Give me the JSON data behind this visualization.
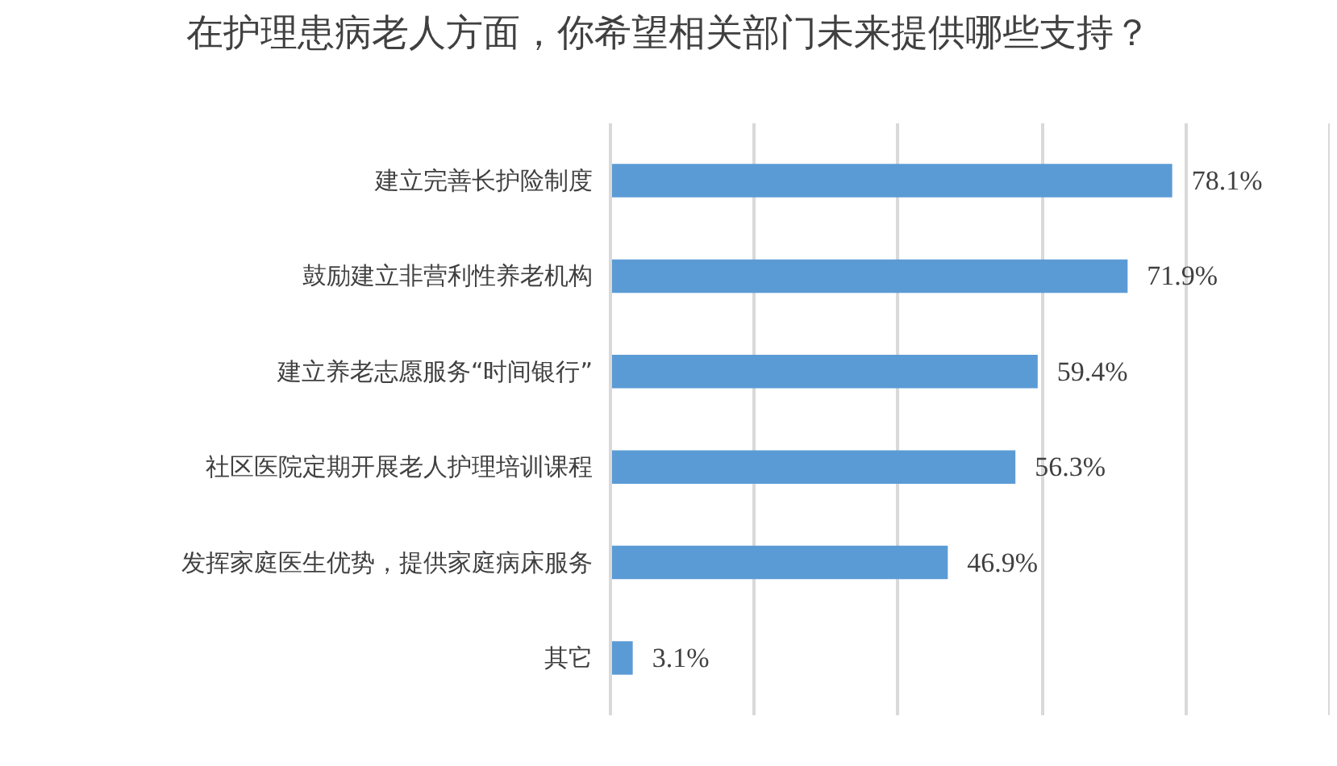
{
  "chart_data": {
    "type": "bar",
    "orientation": "horizontal",
    "title": "在护理患病老人方面，你希望相关部门未来提供哪些支持？",
    "categories": [
      "建立完善长护险制度",
      "鼓励建立非营利性养老机构",
      "建立养老志愿服务“时间银行”",
      "社区医院定期开展老人护理培训课程",
      "发挥家庭医生优势，提供家庭病床服务",
      "其它"
    ],
    "values": [
      78.1,
      71.9,
      59.4,
      56.3,
      46.9,
      3.1
    ],
    "value_labels": [
      "78.1%",
      "71.9%",
      "59.4%",
      "56.3%",
      "46.9%",
      "3.1%"
    ],
    "color": "#5b9bd5",
    "xlim": [
      0,
      100
    ],
    "xticks": [
      {
        "value": 0,
        "label": null
      },
      {
        "value": 20,
        "label": null
      },
      {
        "value": 40,
        "label": null
      },
      {
        "value": 60,
        "label": null
      },
      {
        "value": 80,
        "label": null
      },
      {
        "value": 100,
        "label": null
      }
    ],
    "grid": "x",
    "tick_labels": "y"
  }
}
